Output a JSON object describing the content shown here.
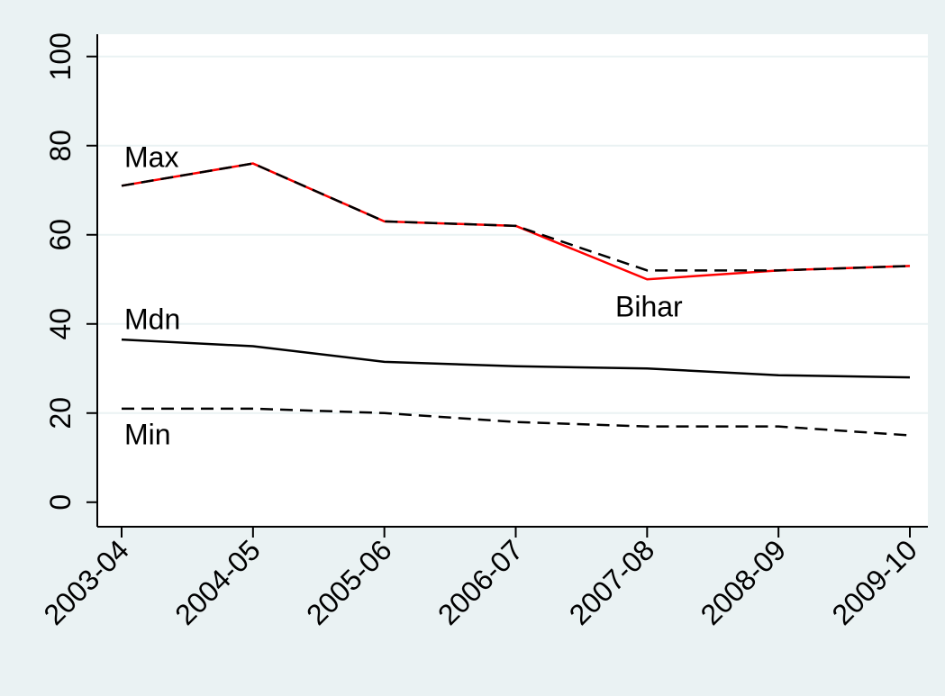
{
  "chart_data": {
    "type": "line",
    "categories": [
      "2003-04",
      "2004-05",
      "2005-06",
      "2006-07",
      "2007-08",
      "2008-09",
      "2009-10"
    ],
    "series": [
      {
        "name": "Bihar",
        "color": "#ff0000",
        "style": "solid",
        "values": [
          71,
          76,
          63,
          62,
          50,
          52,
          53
        ]
      },
      {
        "name": "Max",
        "color": "#000000",
        "style": "dashed",
        "values": [
          71,
          76,
          63,
          62,
          52,
          52,
          53
        ]
      },
      {
        "name": "Mdn",
        "color": "#000000",
        "style": "solid",
        "values": [
          36.5,
          35,
          31.5,
          30.5,
          30,
          28.5,
          28
        ]
      },
      {
        "name": "Min",
        "color": "#000000",
        "style": "dashed",
        "values": [
          21,
          21,
          20,
          18,
          17,
          17,
          15
        ]
      }
    ],
    "ylim": [
      -5.5,
      105
    ],
    "yticks": [
      0,
      20,
      40,
      60,
      80,
      100
    ],
    "grid": true
  }
}
